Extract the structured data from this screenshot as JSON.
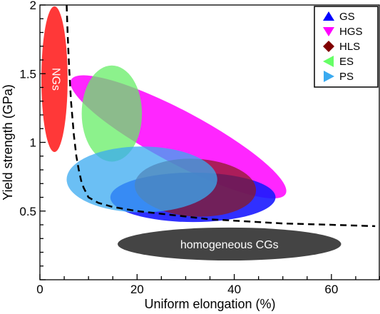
{
  "chart_data": {
    "type": "scatter",
    "title": "",
    "xlabel": "Uniform elongation (%)",
    "ylabel": "Yield strength (GPa)",
    "xlim": [
      0,
      70
    ],
    "ylim": [
      0,
      2
    ],
    "x_ticks": [
      "0",
      "20",
      "40",
      "60"
    ],
    "y_ticks": [
      "0.5",
      "1",
      "1.5",
      "2"
    ],
    "grid": false,
    "legend_position": "top-right",
    "legend": [
      {
        "label": "GS",
        "marker": "triangle-up",
        "color": "#0000ff"
      },
      {
        "label": "HGS",
        "marker": "triangle-down",
        "color": "#ff00ff"
      },
      {
        "label": "HLS",
        "marker": "diamond",
        "color": "#800000"
      },
      {
        "label": "ES",
        "marker": "triangle-left",
        "color": "#66ff66"
      },
      {
        "label": "PS",
        "marker": "triangle-right",
        "color": "#3aaaf0"
      }
    ],
    "regions": [
      {
        "name": "homogeneous CGs",
        "label": "homogeneous CGs",
        "color": "#444444",
        "opacity": 1.0,
        "cx": 39,
        "cy": 0.26,
        "rx": 23,
        "ry": 0.12,
        "angle": 0
      },
      {
        "name": "HGS",
        "label": "",
        "color": "#ff00ff",
        "opacity": 0.85,
        "cx": 28.5,
        "cy": 1.04,
        "rx": 25,
        "ry": 0.19,
        "angle": 28
      },
      {
        "name": "GS",
        "label": "",
        "color": "#1a1aff",
        "opacity": 0.9,
        "cx": 31.5,
        "cy": 0.6,
        "rx": 17,
        "ry": 0.18,
        "angle": 0
      },
      {
        "name": "HLS",
        "label": "",
        "color": "#8b1a1a",
        "opacity": 0.72,
        "cx": 32,
        "cy": 0.67,
        "rx": 12.5,
        "ry": 0.21,
        "angle": 3
      },
      {
        "name": "ES",
        "label": "",
        "color": "#66ee66",
        "opacity": 0.75,
        "cx": 14.8,
        "cy": 1.21,
        "rx": 6.2,
        "ry": 0.35,
        "angle": 0
      },
      {
        "name": "PS",
        "label": "",
        "color": "#3aaaf0",
        "opacity": 0.75,
        "cx": 21,
        "cy": 0.73,
        "rx": 15.5,
        "ry": 0.24,
        "angle": 0
      },
      {
        "name": "NGs",
        "label": "NGs",
        "color": "#ff2222",
        "opacity": 0.9,
        "cx": 3,
        "cy": 1.46,
        "rx": 2.7,
        "ry": 0.53,
        "angle": 0
      }
    ],
    "boundary_curve": {
      "style": "dashed",
      "x": [
        5.5,
        5.7,
        6,
        6.4,
        7,
        7.5,
        8,
        8.5,
        9,
        10,
        12,
        15,
        20,
        25,
        30,
        35,
        40,
        50,
        60,
        69
      ],
      "y": [
        2.0,
        1.8,
        1.55,
        1.3,
        1.05,
        0.9,
        0.8,
        0.72,
        0.67,
        0.6,
        0.56,
        0.53,
        0.5,
        0.48,
        0.46,
        0.44,
        0.43,
        0.41,
        0.4,
        0.39
      ]
    }
  }
}
